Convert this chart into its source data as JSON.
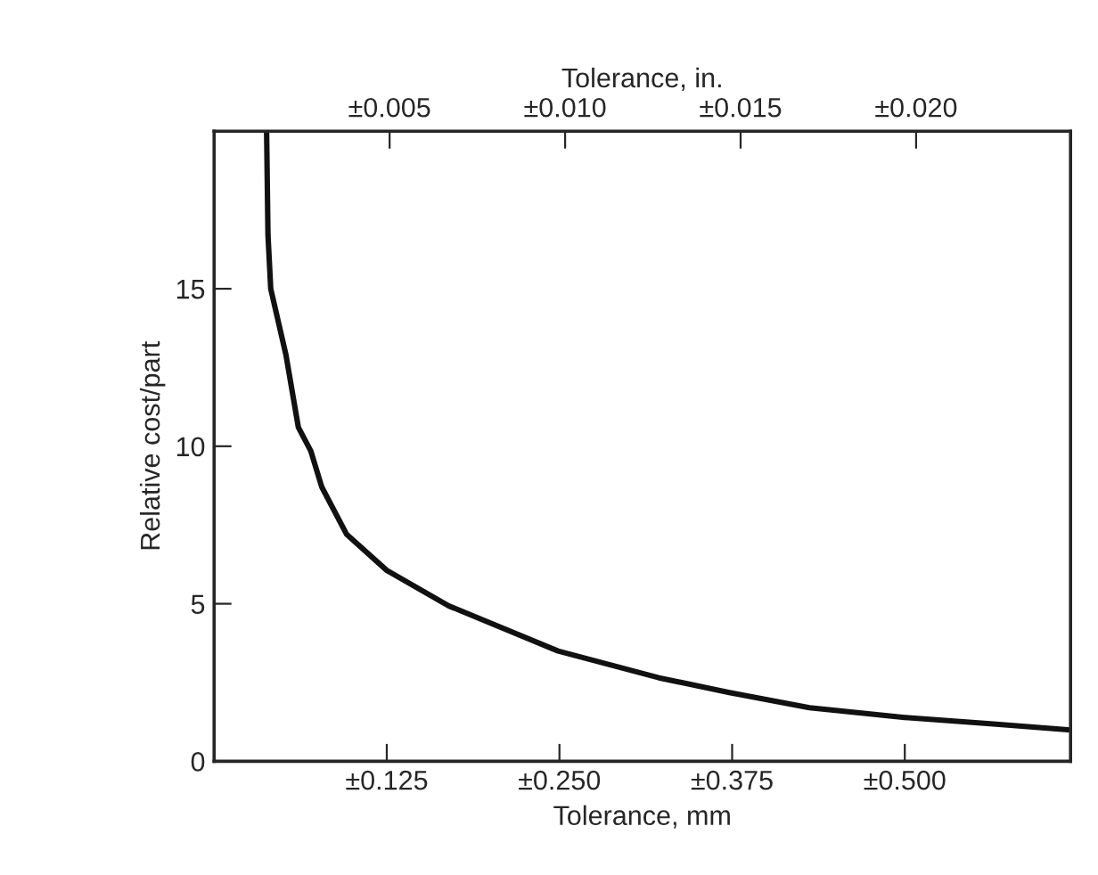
{
  "chart_data": {
    "type": "line",
    "xlabel": "Tolerance, mm",
    "ylabel": "Relative cost/part",
    "x2label": "Tolerance, in.",
    "x": [
      0.038,
      0.039,
      0.041,
      0.052,
      0.061,
      0.07,
      0.078,
      0.096,
      0.125,
      0.17,
      0.249,
      0.322,
      0.373,
      0.431,
      0.5,
      0.562,
      0.618
    ],
    "series": [
      {
        "color": "#111111",
        "values": [
          20,
          16.7,
          15,
          12.9,
          10.6,
          9.85,
          8.7,
          7.2,
          6.06,
          4.93,
          3.5,
          2.65,
          2.18,
          1.7,
          1.39,
          1.19,
          1.0
        ]
      }
    ],
    "xlim": [
      0,
      0.62
    ],
    "ylim": [
      0,
      20
    ],
    "xticks": [
      {
        "value": 0.125,
        "label": "±0.125"
      },
      {
        "value": 0.25,
        "label": "±0.250"
      },
      {
        "value": 0.375,
        "label": "±0.375"
      },
      {
        "value": 0.5,
        "label": "±0.500"
      }
    ],
    "yticks": [
      0,
      5,
      10,
      15
    ],
    "x2lim": [
      0,
      0.0244
    ],
    "x2ticks": [
      {
        "value": 0.005,
        "label": "±0.005"
      },
      {
        "value": 0.01,
        "label": "±0.010"
      },
      {
        "value": 0.015,
        "label": "±0.015"
      },
      {
        "value": 0.02,
        "label": "±0.020"
      }
    ],
    "grid": false,
    "marker": "none",
    "line_style": "solid"
  }
}
